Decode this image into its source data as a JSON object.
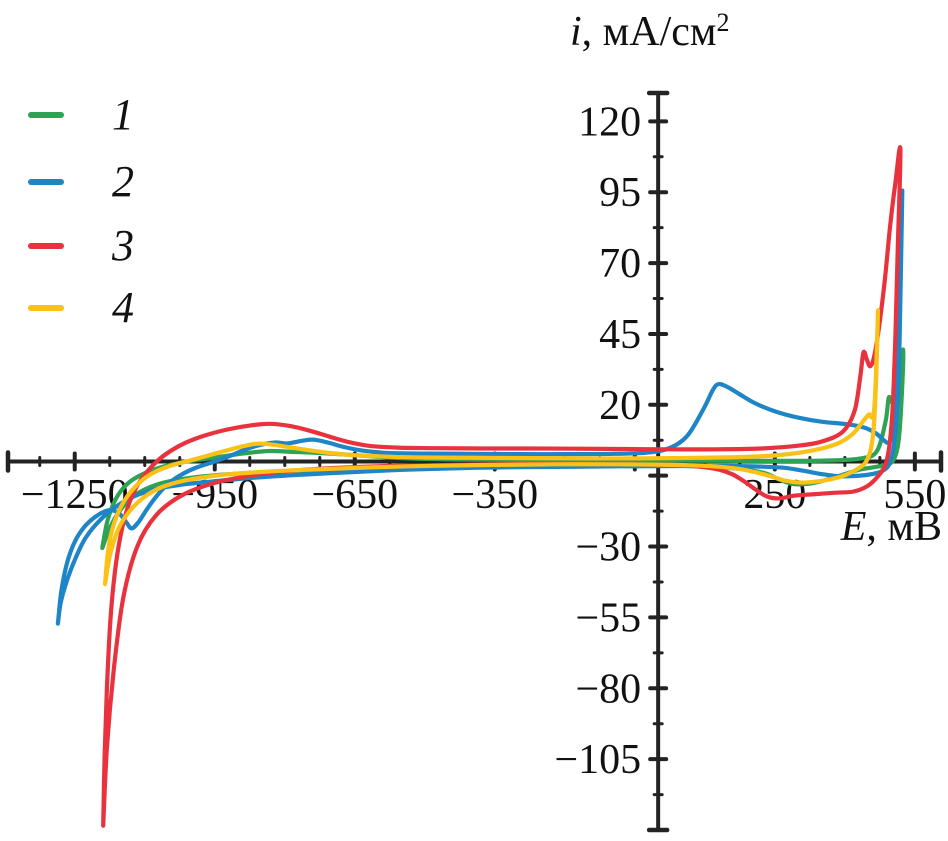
{
  "figure": {
    "background": "#ffffff",
    "axis_color": "#232323",
    "text_color": "#111111"
  },
  "y_axis_title": {
    "symbol": "i",
    "rest": ", мА/см",
    "sup": "2"
  },
  "x_axis_title": {
    "symbol": "E",
    "rest": ", мВ"
  },
  "legend": {
    "position": "top-left",
    "items": [
      {
        "label": "1",
        "color": "#2fa355"
      },
      {
        "label": "2",
        "color": "#1e85c7"
      },
      {
        "label": "3",
        "color": "#e8323e"
      },
      {
        "label": "4",
        "color": "#fbc117"
      }
    ]
  },
  "chart_data": {
    "type": "line",
    "title": "",
    "xlabel": "E, мВ",
    "ylabel": "i, мА/см2",
    "grid": false,
    "x_domain": [
      -1393,
      606
    ],
    "y_domain": [
      -130,
      130
    ],
    "x_labeled_ticks": [
      -1250,
      -950,
      -650,
      -350,
      250,
      550
    ],
    "x_minor_step": 75,
    "y_labeled_ticks": [
      120,
      95,
      70,
      45,
      20,
      -30,
      -55,
      -80,
      -105
    ],
    "y_minor_step": 12.5,
    "series": [
      {
        "name": "1",
        "color": "#2fa355",
        "points": [
          [
            -1191,
            -30.5
          ],
          [
            -1180,
            -21
          ],
          [
            -1163,
            -13.5
          ],
          [
            -1138,
            -8
          ],
          [
            -1105,
            -4.5
          ],
          [
            -1065,
            -2
          ],
          [
            -1020,
            -0.3
          ],
          [
            -975,
            0.8
          ],
          [
            -925,
            2
          ],
          [
            -875,
            3.1
          ],
          [
            -832,
            3.7
          ],
          [
            -785,
            3.4
          ],
          [
            -725,
            3
          ],
          [
            -655,
            2.3
          ],
          [
            -565,
            1.3
          ],
          [
            -470,
            0.8
          ],
          [
            -350,
            0.6
          ],
          [
            -200,
            0.5
          ],
          [
            -50,
            0.4
          ],
          [
            100,
            0.3
          ],
          [
            250,
            0.2
          ],
          [
            355,
            0.3
          ],
          [
            430,
            1
          ],
          [
            468,
            3.5
          ],
          [
            487,
            14
          ],
          [
            494,
            22.5
          ],
          [
            500,
            21
          ],
          [
            506,
            22.5
          ],
          [
            516,
            30
          ],
          [
            525,
            39.3
          ],
          [
            521,
            20
          ],
          [
            515,
            7
          ],
          [
            507,
            1.5
          ],
          [
            494,
            -1
          ],
          [
            462,
            -2
          ],
          [
            424,
            -3.2
          ],
          [
            374,
            -5.8
          ],
          [
            332,
            -7.6
          ],
          [
            292,
            -8
          ],
          [
            263,
            -6.6
          ],
          [
            230,
            -4.2
          ],
          [
            190,
            -2.9
          ],
          [
            138,
            -2.1
          ],
          [
            60,
            -1.6
          ],
          [
            -60,
            -1.3
          ],
          [
            -210,
            -1.3
          ],
          [
            -360,
            -1.5
          ],
          [
            -510,
            -1.9
          ],
          [
            -655,
            -2.6
          ],
          [
            -785,
            -3.3
          ],
          [
            -905,
            -4.3
          ],
          [
            -995,
            -5.6
          ],
          [
            -1063,
            -7.6
          ],
          [
            -1113,
            -11
          ],
          [
            -1147,
            -16
          ],
          [
            -1172,
            -22.5
          ],
          [
            -1191,
            -30.5
          ]
        ]
      },
      {
        "name": "2",
        "color": "#1e85c7",
        "points": [
          [
            -1286,
            -57.2
          ],
          [
            -1279,
            -46
          ],
          [
            -1266,
            -35.5
          ],
          [
            -1249,
            -28
          ],
          [
            -1229,
            -23
          ],
          [
            -1206,
            -19.5
          ],
          [
            -1184,
            -17.5
          ],
          [
            -1169,
            -17.2
          ],
          [
            -1153,
            -18.6
          ],
          [
            -1139,
            -21.6
          ],
          [
            -1128,
            -23.6
          ],
          [
            -1113,
            -21.3
          ],
          [
            -1094,
            -16.5
          ],
          [
            -1071,
            -11.5
          ],
          [
            -1047,
            -7.5
          ],
          [
            -1019,
            -4.4
          ],
          [
            -989,
            -2.1
          ],
          [
            -954,
            -0.2
          ],
          [
            -917,
            2
          ],
          [
            -882,
            4.4
          ],
          [
            -848,
            6
          ],
          [
            -820,
            6.7
          ],
          [
            -794,
            6.4
          ],
          [
            -763,
            7.3
          ],
          [
            -738,
            7.7
          ],
          [
            -708,
            6.7
          ],
          [
            -673,
            5.1
          ],
          [
            -632,
            3.8
          ],
          [
            -578,
            3
          ],
          [
            -495,
            2.8
          ],
          [
            -395,
            2.7
          ],
          [
            -295,
            2.6
          ],
          [
            -195,
            2.6
          ],
          [
            -95,
            2.7
          ],
          [
            -25,
            3.1
          ],
          [
            22,
            4.6
          ],
          [
            62,
            9
          ],
          [
            97,
            18.5
          ],
          [
            117,
            25.2
          ],
          [
            129,
            27.3
          ],
          [
            147,
            26.4
          ],
          [
            172,
            24
          ],
          [
            207,
            20.6
          ],
          [
            252,
            17.6
          ],
          [
            302,
            15.4
          ],
          [
            352,
            14
          ],
          [
            402,
            13.2
          ],
          [
            441,
            12
          ],
          [
            466,
            10
          ],
          [
            484,
            7.4
          ],
          [
            493,
            6.6
          ],
          [
            501,
            8.5
          ],
          [
            509,
            16
          ],
          [
            515,
            38
          ],
          [
            519,
            66
          ],
          [
            523,
            95.5
          ],
          [
            519,
            58
          ],
          [
            515,
            28
          ],
          [
            509,
            11
          ],
          [
            502,
            2.8
          ],
          [
            493,
            -1.6
          ],
          [
            477,
            -3.6
          ],
          [
            453,
            -4.6
          ],
          [
            421,
            -5.1
          ],
          [
            386,
            -5.2
          ],
          [
            349,
            -4.4
          ],
          [
            309,
            -3.2
          ],
          [
            268,
            -2.2
          ],
          [
            218,
            -1.8
          ],
          [
            148,
            -1.6
          ],
          [
            48,
            -1.6
          ],
          [
            -82,
            -1.7
          ],
          [
            -222,
            -1.9
          ],
          [
            -352,
            -2.1
          ],
          [
            -482,
            -2.6
          ],
          [
            -602,
            -3.3
          ],
          [
            -702,
            -4.1
          ],
          [
            -792,
            -4.9
          ],
          [
            -872,
            -5.8
          ],
          [
            -952,
            -7
          ],
          [
            -1022,
            -8.2
          ],
          [
            -1082,
            -10
          ],
          [
            -1132,
            -13
          ],
          [
            -1182,
            -18.5
          ],
          [
            -1227,
            -27
          ],
          [
            -1259,
            -38.5
          ],
          [
            -1279,
            -49
          ],
          [
            -1286,
            -57.2
          ]
        ]
      },
      {
        "name": "3",
        "color": "#e8323e",
        "points": [
          [
            -1189,
            -128.5
          ],
          [
            -1186,
            -104
          ],
          [
            -1181,
            -80
          ],
          [
            -1174,
            -57
          ],
          [
            -1164,
            -39
          ],
          [
            -1151,
            -25.5
          ],
          [
            -1135,
            -15.5
          ],
          [
            -1117,
            -8.8
          ],
          [
            -1096,
            -3.8
          ],
          [
            -1073,
            0.2
          ],
          [
            -1046,
            3.6
          ],
          [
            -1013,
            6.6
          ],
          [
            -973,
            9.1
          ],
          [
            -928,
            11.1
          ],
          [
            -878,
            12.6
          ],
          [
            -833,
            13.3
          ],
          [
            -788,
            12.5
          ],
          [
            -743,
            10.7
          ],
          [
            -703,
            8.7
          ],
          [
            -662,
            6.8
          ],
          [
            -618,
            5.5
          ],
          [
            -558,
            4.9
          ],
          [
            -478,
            4.7
          ],
          [
            -378,
            4.6
          ],
          [
            -278,
            4.6
          ],
          [
            -178,
            4.5
          ],
          [
            -78,
            4.4
          ],
          [
            22,
            4.3
          ],
          [
            122,
            4.3
          ],
          [
            222,
            4.6
          ],
          [
            302,
            5.6
          ],
          [
            352,
            7.1
          ],
          [
            396,
            10.6
          ],
          [
            421,
            18
          ],
          [
            433,
            30
          ],
          [
            440,
            38.5
          ],
          [
            447,
            36
          ],
          [
            454,
            33.6
          ],
          [
            462,
            36.5
          ],
          [
            472,
            46
          ],
          [
            485,
            63
          ],
          [
            497,
            83
          ],
          [
            508,
            98
          ],
          [
            519,
            110
          ],
          [
            513,
            73
          ],
          [
            508,
            43
          ],
          [
            502,
            18
          ],
          [
            495,
            5
          ],
          [
            486,
            -1.5
          ],
          [
            471,
            -5.2
          ],
          [
            449,
            -8.6
          ],
          [
            419,
            -10.6
          ],
          [
            379,
            -11
          ],
          [
            329,
            -11.6
          ],
          [
            289,
            -12.1
          ],
          [
            261,
            -13
          ],
          [
            234,
            -12.4
          ],
          [
            209,
            -9.9
          ],
          [
            184,
            -7
          ],
          [
            159,
            -4.5
          ],
          [
            129,
            -2.8
          ],
          [
            89,
            -1.8
          ],
          [
            29,
            -1.2
          ],
          [
            -81,
            -1
          ],
          [
            -221,
            -0.9
          ],
          [
            -351,
            -1
          ],
          [
            -481,
            -1.3
          ],
          [
            -581,
            -1.6
          ],
          [
            -681,
            -2.2
          ],
          [
            -781,
            -3.2
          ],
          [
            -871,
            -4.9
          ],
          [
            -951,
            -7.6
          ],
          [
            -1021,
            -12
          ],
          [
            -1076,
            -19
          ],
          [
            -1116,
            -30
          ],
          [
            -1146,
            -48
          ],
          [
            -1166,
            -73
          ],
          [
            -1181,
            -101
          ],
          [
            -1189,
            -128.5
          ]
        ]
      },
      {
        "name": "4",
        "color": "#fbc117",
        "points": [
          [
            -1185,
            -43.2
          ],
          [
            -1180,
            -33.5
          ],
          [
            -1172,
            -25.5
          ],
          [
            -1159,
            -18.8
          ],
          [
            -1142,
            -13.4
          ],
          [
            -1121,
            -9
          ],
          [
            -1097,
            -5.5
          ],
          [
            -1069,
            -3
          ],
          [
            -1039,
            -1.2
          ],
          [
            -1004,
            0.3
          ],
          [
            -964,
            2.1
          ],
          [
            -924,
            3.9
          ],
          [
            -889,
            5.4
          ],
          [
            -857,
            6.3
          ],
          [
            -824,
            5.9
          ],
          [
            -789,
            5
          ],
          [
            -749,
            4
          ],
          [
            -704,
            3
          ],
          [
            -649,
            2.2
          ],
          [
            -579,
            1.7
          ],
          [
            -499,
            1.4
          ],
          [
            -399,
            1.3
          ],
          [
            -279,
            1.2
          ],
          [
            -159,
            1.1
          ],
          [
            -39,
            1.1
          ],
          [
            81,
            1.3
          ],
          [
            181,
            1.6
          ],
          [
            261,
            2.3
          ],
          [
            331,
            3.9
          ],
          [
            381,
            6.1
          ],
          [
            416,
            9.6
          ],
          [
            441,
            14.6
          ],
          [
            452,
            16.6
          ],
          [
            458,
            15.6
          ],
          [
            463,
            19
          ],
          [
            467,
            32
          ],
          [
            471,
            53.3
          ],
          [
            468,
            34
          ],
          [
            464,
            17
          ],
          [
            459,
            7.5
          ],
          [
            452,
            2.2
          ],
          [
            442,
            -0.8
          ],
          [
            427,
            -2.6
          ],
          [
            404,
            -4.6
          ],
          [
            374,
            -6.1
          ],
          [
            339,
            -7.1
          ],
          [
            304,
            -7.4
          ],
          [
            271,
            -6.7
          ],
          [
            239,
            -5.1
          ],
          [
            204,
            -3.6
          ],
          [
            164,
            -2.4
          ],
          [
            109,
            -1.6
          ],
          [
            29,
            -1.2
          ],
          [
            -91,
            -1
          ],
          [
            -221,
            -1
          ],
          [
            -351,
            -1.2
          ],
          [
            -481,
            -1.5
          ],
          [
            -601,
            -2
          ],
          [
            -721,
            -2.7
          ],
          [
            -831,
            -3.5
          ],
          [
            -931,
            -4.7
          ],
          [
            -1011,
            -6.6
          ],
          [
            -1071,
            -9.6
          ],
          [
            -1116,
            -14.6
          ],
          [
            -1151,
            -22
          ],
          [
            -1173,
            -32
          ],
          [
            -1185,
            -43.2
          ]
        ]
      }
    ]
  }
}
